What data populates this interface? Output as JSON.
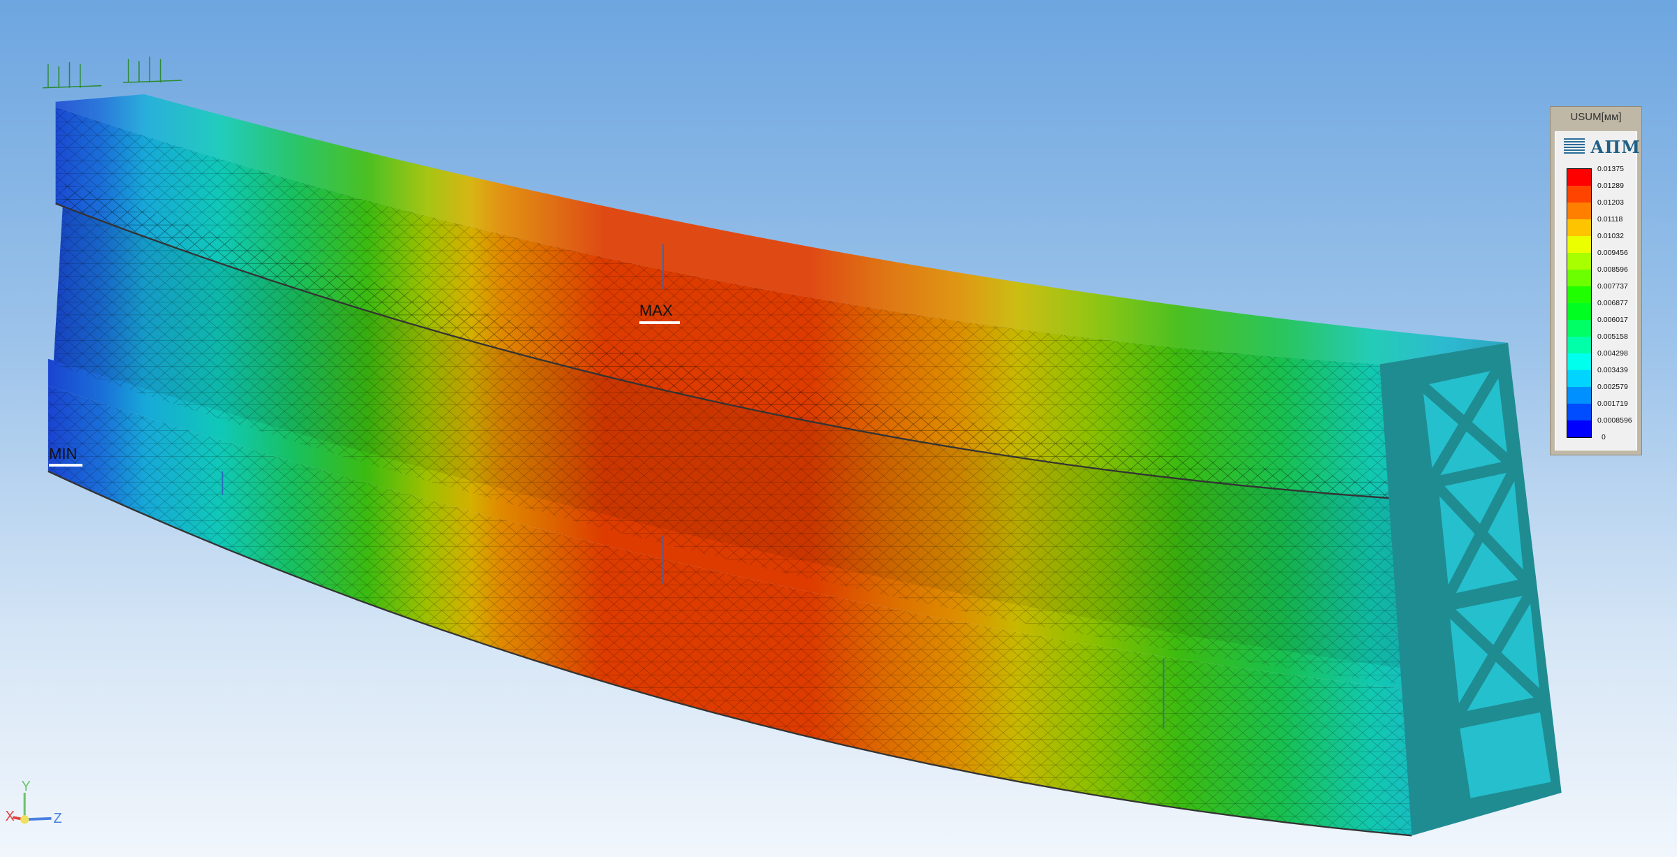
{
  "result": {
    "max_label": "MAX",
    "min_label": "MIN"
  },
  "legend": {
    "title": "USUM[мм]",
    "logo_text": "АПМ",
    "colors": [
      "#ff0000",
      "#ff4400",
      "#ff8000",
      "#ffc400",
      "#ecff00",
      "#a8ff00",
      "#6cff00",
      "#20ff00",
      "#00ff20",
      "#00ff64",
      "#00ffa8",
      "#00ffec",
      "#00d4ff",
      "#0090ff",
      "#004cff",
      "#0000ff"
    ],
    "values": [
      "0.01375",
      "0.01289",
      "0.01203",
      "0.01118",
      "0.01032",
      "0.009456",
      "0.008596",
      "0.007737",
      "0.006877",
      "0.006017",
      "0.005158",
      "0.004298",
      "0.003439",
      "0.002579",
      "0.001719",
      "0.0008596",
      "0"
    ]
  },
  "axes": {
    "x": "X",
    "y": "Y",
    "z": "Z"
  }
}
